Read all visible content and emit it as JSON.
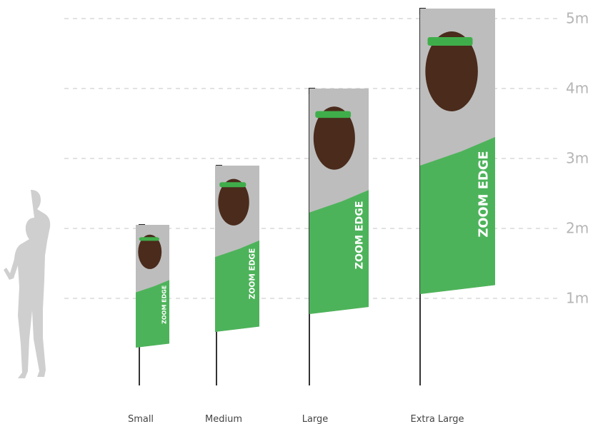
{
  "scale": {
    "labels": [
      "1m",
      "2m",
      "3m",
      "4m",
      "5m"
    ]
  },
  "flags": [
    {
      "name": "Small"
    },
    {
      "name": "Medium"
    },
    {
      "name": "Large"
    },
    {
      "name": "Extra Large"
    }
  ],
  "brand": "ZOOM EDGE"
}
